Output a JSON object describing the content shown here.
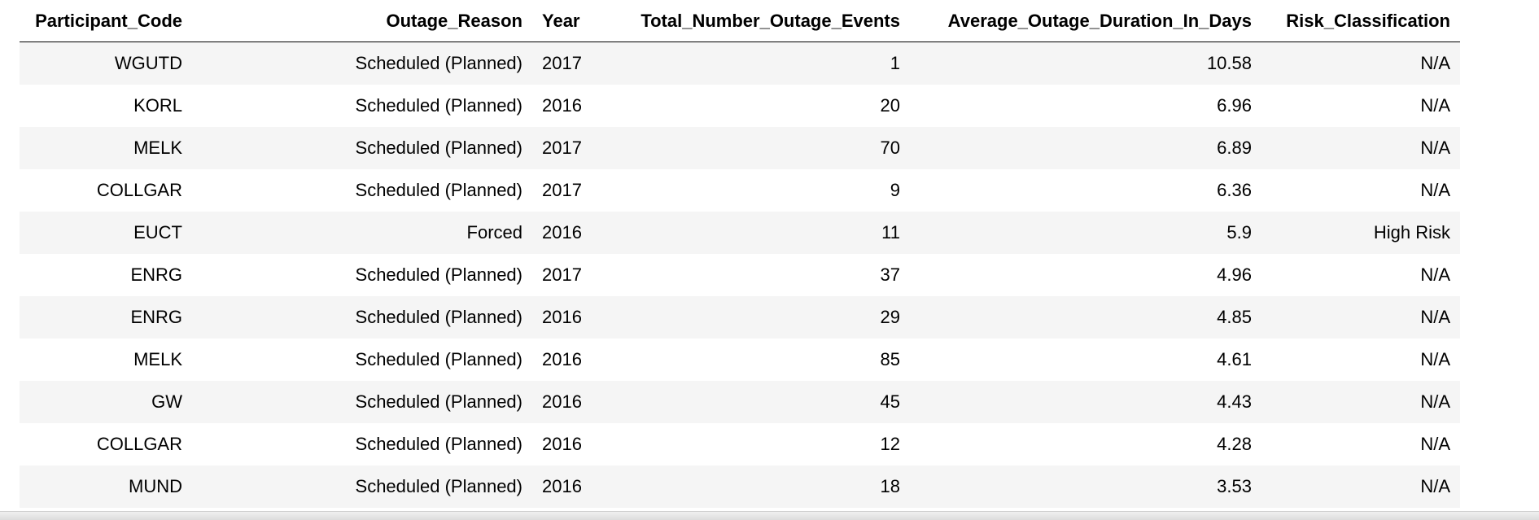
{
  "table": {
    "columns": [
      "Participant_Code",
      "Outage_Reason",
      "Year",
      "Total_Number_Outage_Events",
      "Average_Outage_Duration_In_Days",
      "Risk_Classification"
    ],
    "rows": [
      [
        "WGUTD",
        "Scheduled (Planned)",
        "2017",
        "1",
        "10.58",
        "N/A"
      ],
      [
        "KORL",
        "Scheduled (Planned)",
        "2016",
        "20",
        "6.96",
        "N/A"
      ],
      [
        "MELK",
        "Scheduled (Planned)",
        "2017",
        "70",
        "6.89",
        "N/A"
      ],
      [
        "COLLGAR",
        "Scheduled (Planned)",
        "2017",
        "9",
        "6.36",
        "N/A"
      ],
      [
        "EUCT",
        "Forced",
        "2016",
        "11",
        "5.9",
        "High Risk"
      ],
      [
        "ENRG",
        "Scheduled (Planned)",
        "2017",
        "37",
        "4.96",
        "N/A"
      ],
      [
        "ENRG",
        "Scheduled (Planned)",
        "2016",
        "29",
        "4.85",
        "N/A"
      ],
      [
        "MELK",
        "Scheduled (Planned)",
        "2016",
        "85",
        "4.61",
        "N/A"
      ],
      [
        "GW",
        "Scheduled (Planned)",
        "2016",
        "45",
        "4.43",
        "N/A"
      ],
      [
        "COLLGAR",
        "Scheduled (Planned)",
        "2016",
        "12",
        "4.28",
        "N/A"
      ],
      [
        "MUND",
        "Scheduled (Planned)",
        "2016",
        "18",
        "3.53",
        "N/A"
      ]
    ]
  },
  "colors": {
    "stripe": "#f5f5f5",
    "header_rule": "#000000",
    "text": "#000000"
  }
}
